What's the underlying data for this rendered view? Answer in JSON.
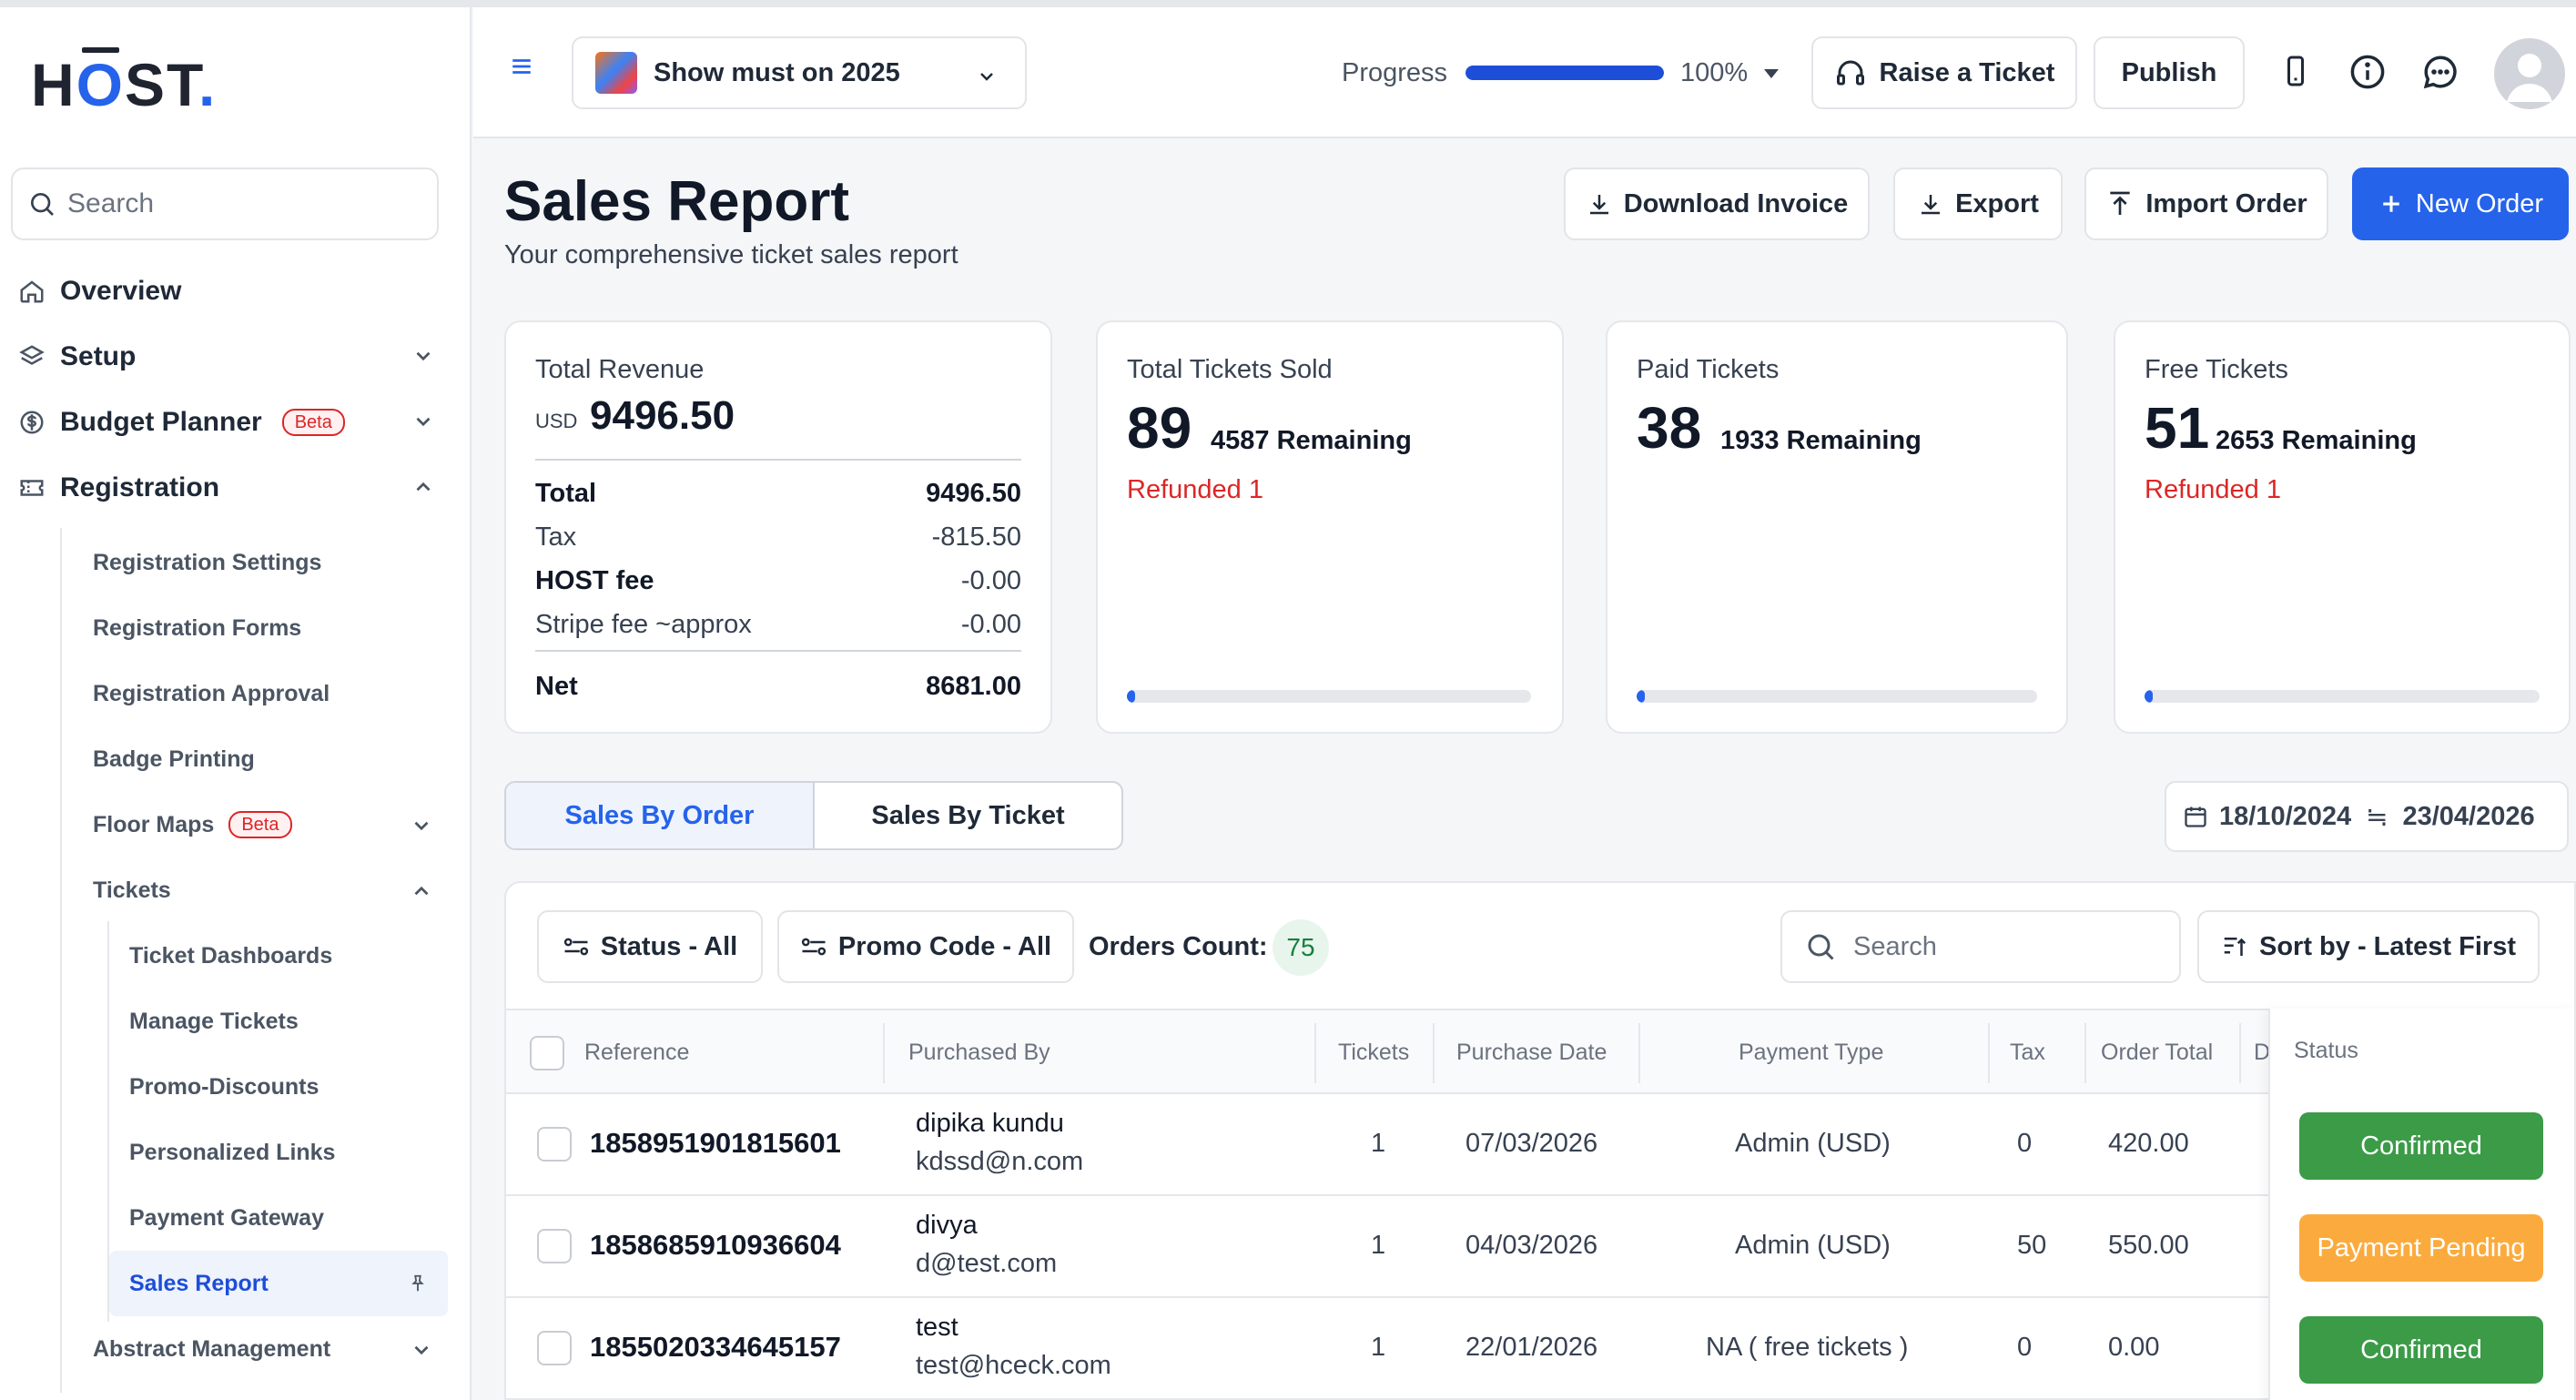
{
  "app": {
    "logo_text": "HOST",
    "brand_color": "#2563eb"
  },
  "sidebar": {
    "search_placeholder": "Search",
    "items": [
      {
        "label": "Overview",
        "icon": "home-icon"
      },
      {
        "label": "Setup",
        "icon": "layers-icon"
      },
      {
        "label": "Budget Planner",
        "badge": "Beta",
        "icon": "dollar-circle-icon"
      },
      {
        "label": "Registration",
        "icon": "ticket-icon"
      }
    ],
    "registration_items": [
      {
        "label": "Registration Settings"
      },
      {
        "label": "Registration Forms"
      },
      {
        "label": "Registration Approval"
      },
      {
        "label": "Badge Printing"
      },
      {
        "label": "Floor Maps",
        "badge": "Beta"
      },
      {
        "label": "Tickets"
      }
    ],
    "ticket_items": [
      {
        "label": "Ticket Dashboards"
      },
      {
        "label": "Manage Tickets"
      },
      {
        "label": "Promo-Discounts"
      },
      {
        "label": "Personalized Links"
      },
      {
        "label": "Payment Gateway"
      },
      {
        "label": "Sales Report"
      }
    ],
    "abstract_item": {
      "label": "Abstract Management"
    }
  },
  "topbar": {
    "event_name": "Show must on 2025",
    "progress_label": "Progress",
    "progress_value": 100,
    "progress_text": "100%",
    "raise_ticket_label": "Raise a Ticket",
    "publish_label": "Publish"
  },
  "page": {
    "title": "Sales Report",
    "subtitle": "Your comprehensive ticket sales report",
    "actions": {
      "download_invoice": "Download Invoice",
      "export": "Export",
      "import_order": "Import Order",
      "new_order": "New Order"
    }
  },
  "revenue": {
    "title": "Total Revenue",
    "currency": "USD",
    "value": "9496.50",
    "rows": [
      {
        "label": "Total",
        "value": "9496.50"
      },
      {
        "label": "Tax",
        "value": "-815.50"
      },
      {
        "label": "HOST fee",
        "value": "-0.00"
      },
      {
        "label": "Stripe fee ~approx",
        "value": "-0.00"
      },
      {
        "label": "Net",
        "value": "8681.00"
      }
    ]
  },
  "stats": [
    {
      "title": "Total Tickets Sold",
      "value": "89",
      "remaining": "4587 Remaining",
      "refunded": "Refunded 1",
      "fill": 0.02
    },
    {
      "title": "Paid Tickets",
      "value": "38",
      "remaining": "1933 Remaining",
      "refunded": "",
      "fill": 0.02
    },
    {
      "title": "Free Tickets",
      "value": "51",
      "remaining": "2653 Remaining",
      "refunded": "Refunded 1",
      "fill": 0.02
    }
  ],
  "tabs": [
    {
      "label": "Sales By Order"
    },
    {
      "label": "Sales By Ticket"
    }
  ],
  "date_range": {
    "from": "18/10/2024",
    "separator": "≒",
    "to": "23/04/2026"
  },
  "filters": {
    "status": "Status - All",
    "promo": "Promo Code - All",
    "orders_count_label": "Orders Count:",
    "orders_count": "75",
    "search_placeholder": "Search",
    "sort": "Sort by - Latest First"
  },
  "table": {
    "headers": [
      "Reference",
      "Purchased By",
      "Tickets",
      "Purchase Date",
      "Payment Type",
      "Tax",
      "Order Total",
      "D",
      "Status"
    ],
    "rows": [
      {
        "reference": "1858951901815601",
        "name": "dipika kundu",
        "email": "kdssd@n.com",
        "tickets": "1",
        "date": "07/03/2026",
        "payment": "Admin (USD)",
        "tax": "0",
        "total": "420.00",
        "status": "Confirmed",
        "status_color": "#3b9b47"
      },
      {
        "reference": "1858685910936604",
        "name": "divya",
        "email": "d@test.com",
        "tickets": "1",
        "date": "04/03/2026",
        "payment": "Admin (USD)",
        "tax": "50",
        "total": "550.00",
        "status": "Payment Pending",
        "status_color": "#fbab3d"
      },
      {
        "reference": "1855020334645157",
        "name": "test",
        "email": "test@hceck.com",
        "tickets": "1",
        "date": "22/01/2026",
        "payment": "NA ( free tickets )",
        "tax": "0",
        "total": "0.00",
        "status": "Confirmed",
        "status_color": "#3b9b47"
      }
    ]
  }
}
